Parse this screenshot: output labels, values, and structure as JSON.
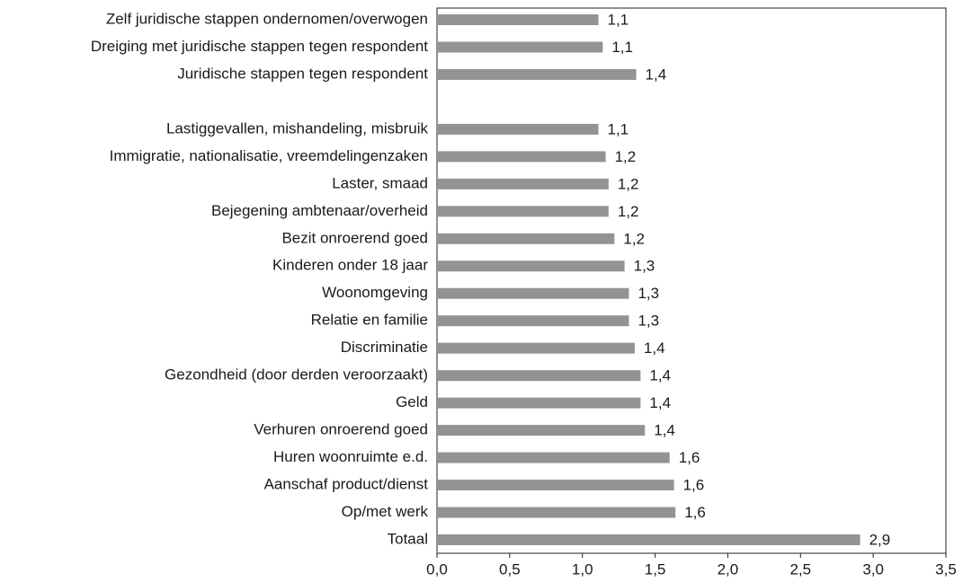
{
  "chart_data": {
    "type": "bar",
    "horizontal": true,
    "color": "#939393",
    "categories": [
      "Zelf juridische stappen ondernomen/overwogen",
      "Dreiging met juridische stappen tegen respondent",
      "Juridische stappen tegen respondent",
      null,
      "Lastiggevallen, mishandeling, misbruik",
      "Immigratie, nationalisatie, vreemdelingenzaken",
      "Laster, smaad",
      "Bejegening ambtenaar/overheid",
      "Bezit onroerend goed",
      "Kinderen onder 18 jaar",
      "Woonomgeving",
      "Relatie en familie",
      "Discriminatie",
      "Gezondheid (door derden veroorzaakt)",
      "Geld",
      "Verhuren onroerend goed",
      "Huren woonruimte e.d.",
      "Aanschaf product/dienst",
      "Op/met werk",
      "Totaal"
    ],
    "values": [
      1.11,
      1.14,
      1.37,
      null,
      1.11,
      1.16,
      1.18,
      1.18,
      1.22,
      1.29,
      1.32,
      1.32,
      1.36,
      1.4,
      1.4,
      1.43,
      1.6,
      1.63,
      1.64,
      2.91
    ],
    "value_labels": [
      "1,1",
      "1,1",
      "1,4",
      null,
      "1,1",
      "1,2",
      "1,2",
      "1,2",
      "1,2",
      "1,3",
      "1,3",
      "1,3",
      "1,4",
      "1,4",
      "1,4",
      "1,4",
      "1,6",
      "1,6",
      "1,6",
      "2,9"
    ],
    "xlim": [
      0,
      3.5
    ],
    "xticks": [
      {
        "value": 0,
        "label": "0,0"
      },
      {
        "value": 0.5,
        "label": "0,5"
      },
      {
        "value": 1,
        "label": "1,0"
      },
      {
        "value": 1.5,
        "label": "1,5"
      },
      {
        "value": 2,
        "label": "2,0"
      },
      {
        "value": 2.5,
        "label": "2,5"
      },
      {
        "value": 3,
        "label": "3,0"
      },
      {
        "value": 3.5,
        "label": "3,5"
      }
    ]
  }
}
